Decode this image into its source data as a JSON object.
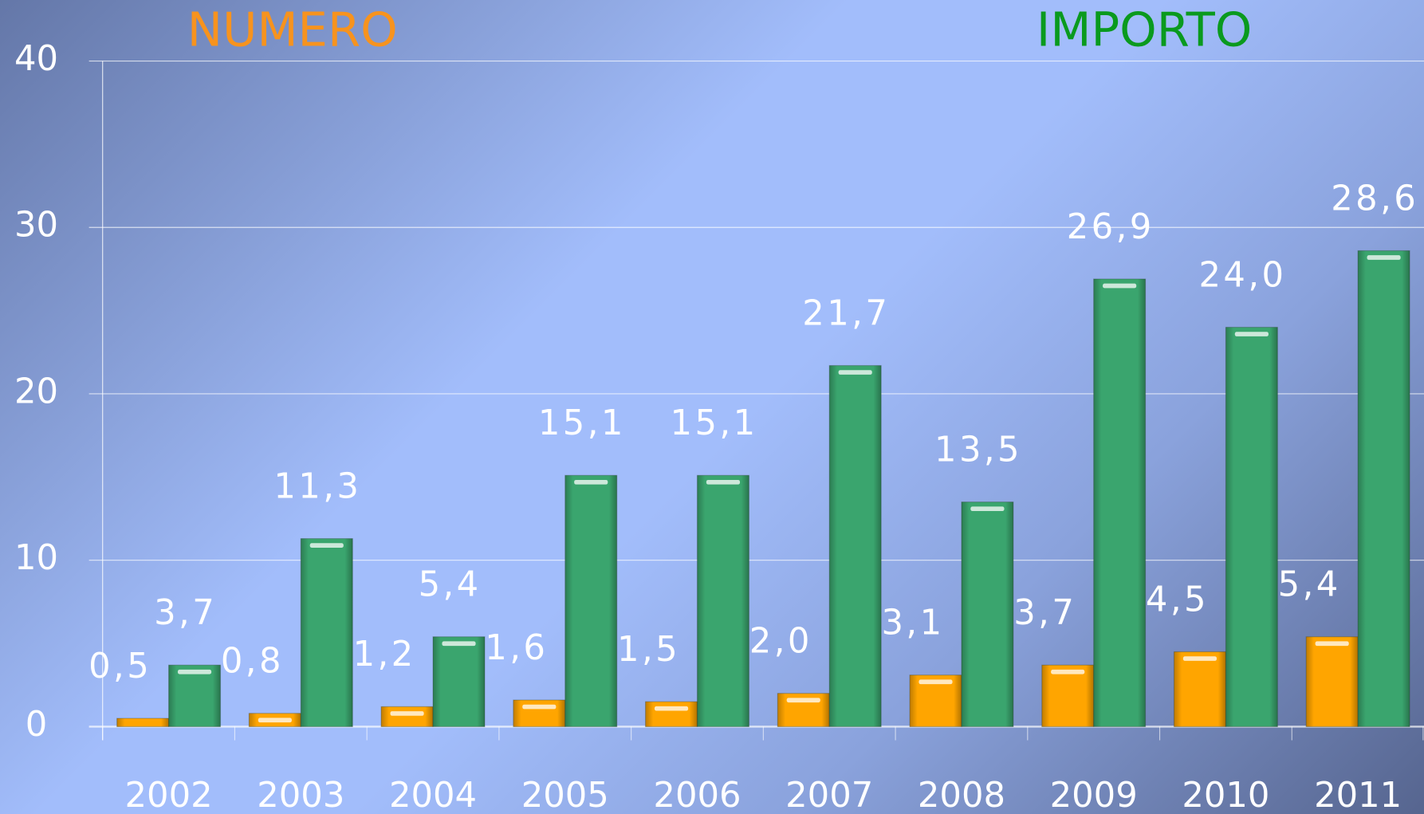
{
  "chart_data": {
    "type": "bar",
    "categories": [
      "2002",
      "2003",
      "2004",
      "2005",
      "2006",
      "2007",
      "2008",
      "2009",
      "2010",
      "2011"
    ],
    "series": [
      {
        "name": "NUMERO",
        "color": "#ffa500",
        "values": [
          0.5,
          0.8,
          1.2,
          1.6,
          1.5,
          2.0,
          3.1,
          3.7,
          4.5,
          5.4
        ],
        "value_labels": [
          "0,5",
          "0,8",
          "1,2",
          "1,6",
          "1,5",
          "2,0",
          "3,1",
          "3,7",
          "4,5",
          "5,4"
        ]
      },
      {
        "name": "IMPORTO",
        "color": "#3aa56e",
        "values": [
          3.7,
          11.3,
          5.4,
          15.1,
          15.1,
          21.7,
          13.5,
          26.9,
          24.0,
          28.6
        ],
        "value_labels": [
          "3,7",
          "11,3",
          "5,4",
          "15,1",
          "15,1",
          "21,7",
          "13,5",
          "26,9",
          "24,0",
          "28,6"
        ]
      }
    ],
    "legend_colors": [
      "#f7931e",
      "#0a9a1e"
    ],
    "ylim": [
      0,
      40
    ],
    "yticks": [
      0,
      10,
      20,
      30,
      40
    ],
    "grid": true
  }
}
